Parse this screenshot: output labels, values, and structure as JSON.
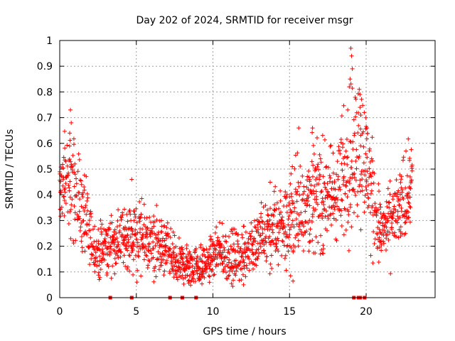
{
  "chart_data": {
    "type": "scatter",
    "title": "Day 202 of 2024, SRMTID for receiver msgr",
    "xlabel": "GPS time / hours",
    "ylabel": "SRMTID / TECUs",
    "xlim": [
      0,
      24.5
    ],
    "ylim": [
      0,
      1
    ],
    "xticks": [
      0,
      5,
      10,
      15,
      20
    ],
    "xtick_labels": [
      "0",
      "5",
      "10",
      "15",
      "20"
    ],
    "yticks": [
      0,
      0.1,
      0.2,
      0.3,
      0.4,
      0.5,
      0.6,
      0.7,
      0.8,
      0.9,
      1
    ],
    "ytick_labels": [
      "0",
      "0.1",
      "0.2",
      "0.3",
      "0.4",
      "0.5",
      "0.6",
      "0.7",
      "0.8",
      "0.9",
      "1"
    ],
    "grid": true,
    "marker": "+",
    "color": "#ff0000",
    "trend": {
      "x": [
        0,
        0.5,
        1,
        1.5,
        2,
        2.5,
        3,
        3.5,
        4,
        4.5,
        5,
        5.5,
        6,
        6.5,
        7,
        7.5,
        8,
        8.5,
        9,
        9.5,
        10,
        10.5,
        11,
        11.5,
        12,
        12.5,
        13,
        13.5,
        14,
        14.5,
        15,
        15.5,
        16,
        16.5,
        17,
        17.5,
        18,
        18.5,
        19,
        19.5,
        20,
        20.5,
        21,
        21.5,
        22,
        22.5,
        23
      ],
      "y": [
        0.42,
        0.45,
        0.42,
        0.33,
        0.22,
        0.17,
        0.19,
        0.21,
        0.23,
        0.24,
        0.23,
        0.22,
        0.21,
        0.2,
        0.18,
        0.14,
        0.13,
        0.12,
        0.12,
        0.13,
        0.16,
        0.17,
        0.16,
        0.15,
        0.17,
        0.2,
        0.22,
        0.24,
        0.26,
        0.28,
        0.3,
        0.34,
        0.38,
        0.4,
        0.4,
        0.38,
        0.4,
        0.45,
        0.55,
        0.58,
        0.52,
        0.35,
        0.25,
        0.28,
        0.32,
        0.38,
        0.46
      ],
      "spread": [
        0.08,
        0.1,
        0.1,
        0.08,
        0.06,
        0.05,
        0.05,
        0.05,
        0.05,
        0.06,
        0.08,
        0.07,
        0.06,
        0.06,
        0.05,
        0.05,
        0.04,
        0.04,
        0.04,
        0.04,
        0.04,
        0.05,
        0.05,
        0.05,
        0.05,
        0.05,
        0.06,
        0.08,
        0.08,
        0.08,
        0.09,
        0.1,
        0.1,
        0.1,
        0.1,
        0.1,
        0.1,
        0.12,
        0.15,
        0.15,
        0.12,
        0.1,
        0.06,
        0.07,
        0.07,
        0.08,
        0.08
      ]
    },
    "outliers": [
      {
        "x": 0.7,
        "y": 0.73
      },
      {
        "x": 0.65,
        "y": 0.64
      },
      {
        "x": 0.75,
        "y": 0.68
      },
      {
        "x": 19.0,
        "y": 0.97
      },
      {
        "x": 19.05,
        "y": 0.94
      },
      {
        "x": 19.1,
        "y": 0.89
      },
      {
        "x": 18.95,
        "y": 0.85
      },
      {
        "x": 18.9,
        "y": 0.82
      },
      {
        "x": 19.55,
        "y": 0.81
      },
      {
        "x": 19.6,
        "y": 0.79
      },
      {
        "x": 19.6,
        "y": 0.74
      },
      {
        "x": 18.8,
        "y": 0.73
      },
      {
        "x": 19.65,
        "y": 0.71
      },
      {
        "x": 20.05,
        "y": 0.66
      },
      {
        "x": 16.5,
        "y": 0.66
      },
      {
        "x": 15.6,
        "y": 0.66
      },
      {
        "x": 4.7,
        "y": 0.46
      },
      {
        "x": 22.6,
        "y": 0.57
      },
      {
        "x": 12.0,
        "y": 0.05
      }
    ],
    "zero_points_x": [
      3.3,
      4.7,
      7.2,
      8.0,
      8.9,
      19.2,
      19.5,
      19.6,
      19.9
    ]
  }
}
